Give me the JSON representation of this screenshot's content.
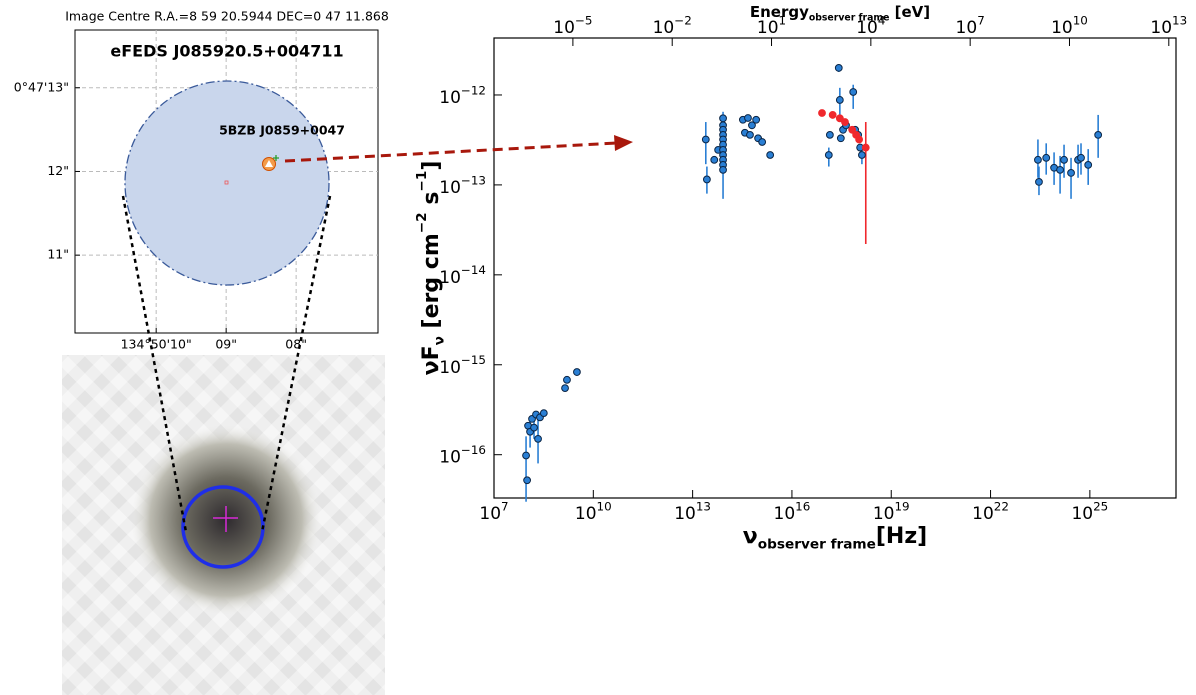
{
  "chart_data": [
    {
      "type": "skymap",
      "title": "Image Centre R.A.=8 59 20.5944 DEC=0 47 11.868",
      "source_label": "eFEDS J085920.5+004711",
      "counterpart_label": "5BZB J0859+0047",
      "xlim": [
        11.16,
        6.83
      ],
      "ylim": [
        10.07,
        13.69
      ],
      "xticks": [
        {
          "value": 10,
          "label": "134°50'10\""
        },
        {
          "value": 9,
          "label": "09\""
        },
        {
          "value": 8,
          "label": "08\""
        }
      ],
      "yticks": [
        {
          "value": 13,
          "label": "0°47'13\""
        },
        {
          "value": 12,
          "label": "12\""
        },
        {
          "value": 11,
          "label": "11\""
        }
      ],
      "grid": true
    },
    {
      "type": "scatter",
      "xlabel": [
        "ν",
        "observer frame",
        "[Hz]"
      ],
      "x2label": [
        "Energy",
        "observer frame",
        " [eV]"
      ],
      "ylabel": [
        "νF",
        "ν",
        " [erg cm",
        "−2",
        " s",
        "−1",
        "]"
      ],
      "xscale": "log",
      "yscale": "log",
      "xlim": [
        10000000.0,
        4e+27
      ],
      "ylim": [
        3.3e-17,
        4.3e-12
      ],
      "x2lim": [
        4.14e-08,
        16500000000000.0
      ],
      "xticks": [
        {
          "value": 10000000.0,
          "label": "10",
          "exponent": "7"
        },
        {
          "value": 10000000000.0,
          "label": "10",
          "exponent": "10"
        },
        {
          "value": 10000000000000.0,
          "label": "10",
          "exponent": "13"
        },
        {
          "value": 1e+16,
          "label": "10",
          "exponent": "16"
        },
        {
          "value": 1e+19,
          "label": "10",
          "exponent": "19"
        },
        {
          "value": 1e+22,
          "label": "10",
          "exponent": "22"
        },
        {
          "value": 1e+25,
          "label": "10",
          "exponent": "25"
        }
      ],
      "x2ticks": [
        {
          "value": 1e-05,
          "label": "10",
          "exponent": "−5"
        },
        {
          "value": 0.01,
          "label": "10",
          "exponent": "−2"
        },
        {
          "value": 10.0,
          "label": "10",
          "exponent": "1"
        },
        {
          "value": 10000.0,
          "label": "10",
          "exponent": "4"
        },
        {
          "value": 10000000.0,
          "label": "10",
          "exponent": "7"
        },
        {
          "value": 10000000000.0,
          "label": "10",
          "exponent": "10"
        },
        {
          "value": 10000000000000.0,
          "label": "10",
          "exponent": "13"
        }
      ],
      "yticks": [
        {
          "value": 1e-16,
          "label": "10",
          "exponent": "−16"
        },
        {
          "value": 1e-15,
          "label": "10",
          "exponent": "−15"
        },
        {
          "value": 1e-14,
          "label": "10",
          "exponent": "−14"
        },
        {
          "value": 1e-13,
          "label": "10",
          "exponent": "−13"
        },
        {
          "value": 1e-12,
          "label": "10",
          "exponent": "−12"
        }
      ],
      "series": [
        {
          "color": "#2a7fd4",
          "edgecolor": "#0b2545",
          "x": [
            93000000.0,
            100000000.0,
            107000000.0,
            123000000.0,
            141000000.0,
            162000000.0,
            186000000.0,
            214000000.0,
            245000000.0,
            320000000.0,
            1400000000.0,
            1600000000.0,
            3200000000.0,
            25000000000000.0,
            27000000000000.0,
            45000000000000.0,
            59000000000000.0,
            83000000000000.0,
            83000000000000.0,
            83000000000000.0,
            83000000000000.0,
            83000000000000.0,
            83000000000000.0,
            83000000000000.0,
            83000000000000.0,
            83000000000000.0,
            83000000000000.0,
            83000000000000.0,
            330000000000000.0,
            470000000000000.0,
            620000000000000.0,
            830000000000000.0,
            380000000000000.0,
            540000000000000.0,
            950000000000000.0,
            1260000000000000.0,
            2200000000000000.0,
            1.3e+17,
            1.4e+17,
            2.6e+17,
            2.8e+17,
            3e+17,
            3.5e+17,
            4.3e+17,
            7.1e+17,
            8.1e+17,
            1e+18,
            1.15e+18,
            1.3e+18,
            2.7e+23,
            2.9e+23,
            4.8e+23,
            8.3e+23,
            1.26e+24,
            1.66e+24,
            2.7e+24,
            4.4e+24,
            5.4e+24,
            8.9e+24,
            1.78e+25
          ],
          "values": [
            9.8e-17,
            5.2e-17,
            2.1e-16,
            1.8e-16,
            2.5e-16,
            2e-16,
            2.8e-16,
            1.5e-16,
            2.6e-16,
            2.9e-16,
            5.5e-16,
            6.8e-16,
            8.3e-16,
            3.2e-13,
            1.15e-13,
            1.9e-13,
            2.45e-13,
            5.5e-13,
            4.6e-13,
            4.1e-13,
            3.6e-13,
            3.2e-13,
            2.8e-13,
            2.45e-13,
            2.15e-13,
            1.9e-13,
            1.67e-13,
            1.47e-13,
            5.3e-13,
            5.55e-13,
            4.6e-13,
            5.3e-13,
            3.8e-13,
            3.6e-13,
            3.3e-13,
            3e-13,
            2.15e-13,
            2.15e-13,
            3.6e-13,
            2e-12,
            8.8e-13,
            3.3e-13,
            4.1e-13,
            4.6e-13,
            1.08e-12,
            4.1e-13,
            3.6e-13,
            2.6e-13,
            2.15e-13,
            1.9e-13,
            1.08e-13,
            2e-13,
            1.55e-13,
            1.47e-13,
            1.9e-13,
            1.36e-13,
            1.9e-13,
            2e-13,
            1.67e-13,
            3.6e-13
          ],
          "ylow": [
            3e-17,
            null,
            null,
            1.2e-16,
            null,
            1.5e-16,
            null,
            8e-17,
            null,
            null,
            null,
            null,
            null,
            1.7e-13,
            8e-14,
            null,
            null,
            4.5e-13,
            null,
            null,
            null,
            null,
            null,
            null,
            null,
            null,
            null,
            7e-14,
            null,
            null,
            null,
            null,
            null,
            null,
            null,
            null,
            null,
            1.6e-13,
            null,
            1.8e-12,
            6e-13,
            null,
            null,
            null,
            7e-13,
            null,
            null,
            null,
            1.7e-13,
            1.2e-13,
            7.7e-14,
            1.3e-13,
            1e-13,
            8e-14,
            1.2e-13,
            7e-14,
            1.2e-13,
            1.3e-13,
            1e-13,
            2e-13
          ],
          "yhigh": [
            1.6e-16,
            null,
            null,
            2.5e-16,
            null,
            2.6e-16,
            null,
            2.6e-16,
            null,
            null,
            null,
            null,
            null,
            5e-13,
            1.6e-13,
            null,
            null,
            6.5e-13,
            null,
            null,
            null,
            null,
            null,
            null,
            null,
            null,
            null,
            2e-13,
            null,
            null,
            null,
            null,
            null,
            null,
            null,
            null,
            null,
            2.6e-13,
            null,
            2.2e-12,
            1.2e-12,
            null,
            null,
            null,
            1.3e-12,
            null,
            null,
            null,
            2.6e-13,
            3.2e-13,
            1.6e-13,
            2.9e-13,
            2.3e-13,
            2.1e-13,
            2.8e-13,
            2e-13,
            2.8e-13,
            2.9e-13,
            2.5e-13,
            6e-13
          ]
        },
        {
          "color": "#f0282d",
          "x": [
            8.1e+16,
            1.7e+17,
            2.8e+17,
            4e+17,
            6.6e+17,
            8.7e+17,
            1.07e+18,
            1.7e+18
          ],
          "values": [
            6.3e-13,
            6e-13,
            5.5e-13,
            5e-13,
            4.1e-13,
            3.6e-13,
            3.2e-13,
            2.6e-13
          ],
          "ylow": [
            null,
            null,
            null,
            null,
            null,
            null,
            null,
            2.2e-14
          ],
          "yhigh": [
            null,
            null,
            null,
            null,
            null,
            null,
            null,
            5e-13
          ]
        }
      ]
    }
  ]
}
